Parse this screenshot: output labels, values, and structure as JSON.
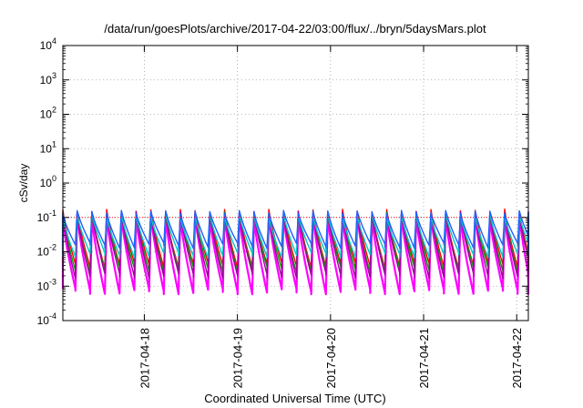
{
  "chart_data": {
    "type": "line",
    "title": "/data/run/goesPlots/archive/2017-04-22/03:00/flux/../bryn/5daysMars.plot",
    "xlabel": "Coordinated Universal Time (UTC)",
    "ylabel": "cSv/day",
    "y_scale": "log",
    "ylim": [
      0.0001,
      10000
    ],
    "xlim": [
      "2017-04-17T03:00",
      "2017-04-22T03:00"
    ],
    "x_ticks": [
      "2017-04-18",
      "2017-04-19",
      "2017-04-20",
      "2017-04-21",
      "2017-04-22"
    ],
    "y_ticks": [
      {
        "base": "10",
        "exp": "4",
        "value": 10000
      },
      {
        "base": "10",
        "exp": "3",
        "value": 1000
      },
      {
        "base": "10",
        "exp": "2",
        "value": 100
      },
      {
        "base": "10",
        "exp": "1",
        "value": 10
      },
      {
        "base": "10",
        "exp": "0",
        "value": 1
      },
      {
        "base": "10",
        "exp": "-1",
        "value": 0.1
      },
      {
        "base": "10",
        "exp": "-2",
        "value": 0.01
      },
      {
        "base": "10",
        "exp": "-3",
        "value": 0.001
      },
      {
        "base": "10",
        "exp": "-4",
        "value": 0.0001
      }
    ],
    "grid": true,
    "reference_line": {
      "value": 0.1,
      "color": "#ff0000",
      "style": "dotted"
    },
    "cycle_hours": 3.8,
    "series": [
      {
        "color": "#ff00ff",
        "peak": 0.11,
        "trough": 0.0007
      },
      {
        "color": "#ff0000",
        "peak": 0.16,
        "trough": 0.004
      },
      {
        "color": "#00a000",
        "peak": 0.13,
        "trough": 0.003
      },
      {
        "color": "#a000a0",
        "peak": 0.14,
        "trough": 0.002
      },
      {
        "color": "#00c8c8",
        "peak": 0.12,
        "trough": 0.008
      },
      {
        "color": "#2060ff",
        "peak": 0.15,
        "trough": 0.015
      }
    ]
  }
}
